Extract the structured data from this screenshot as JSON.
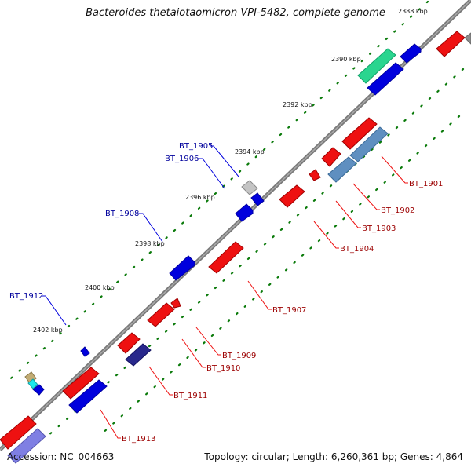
{
  "title": "Bacteroides thetaiotaomicron VPI-5482, complete genome",
  "footer": {
    "accession": "Accession: NC_004663",
    "summary": "Topology: circular; Length: 6,260,361 bp; Genes: 4,864"
  },
  "ticks": {
    "t2388": "2388 kbp",
    "t2390": "2390 kbp",
    "t2392": "2392 kbp",
    "t2394": "2394 kbp",
    "t2396": "2396 kbp",
    "t2398": "2398 kbp",
    "t2400": "2400 kbp",
    "t2402": "2402 kbp"
  },
  "genes_upper": {
    "g1905": "BT_1905",
    "g1906": "BT_1906",
    "g1908": "BT_1908",
    "g1912": "BT_1912"
  },
  "genes_lower": {
    "g1901": "BT_1901",
    "g1902": "BT_1902",
    "g1903": "BT_1903",
    "g1904": "BT_1904",
    "g1907": "BT_1907",
    "g1909": "BT_1909",
    "g1910": "BT_1910",
    "g1911": "BT_1911",
    "g1913": "BT_1913"
  },
  "colors": {
    "backbone": "#808080",
    "forward_cds": "#0000ee",
    "reverse_cds": "#ee0000",
    "steel_cds": "#5b8fc0",
    "label_blue": "#00009c",
    "label_red": "#9c0000",
    "tick_green": "#006400"
  }
}
